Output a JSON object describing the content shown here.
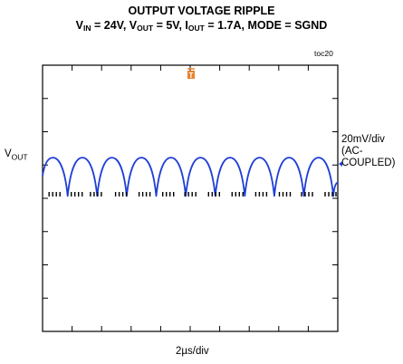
{
  "chart_data": {
    "type": "line",
    "title": "OUTPUT VOLTAGE RIPPLE",
    "subtitle": {
      "parts": [
        {
          "text": "V",
          "sub": false
        },
        {
          "text": "IN",
          "sub": true
        },
        {
          "text": " = 24V, V",
          "sub": false
        },
        {
          "text": "OUT",
          "sub": true
        },
        {
          "text": " = 5V, I",
          "sub": false
        },
        {
          "text": "OUT",
          "sub": true
        },
        {
          "text": " = 1.7A, MODE = SGND",
          "sub": false
        }
      ]
    },
    "figure_id": "toc20",
    "xlabel": "2µs/div",
    "trace_label": {
      "main": "V",
      "sub": "OUT"
    },
    "scale_label_lines": [
      "20mV/div",
      "(AC-",
      "COUPLED)"
    ],
    "trigger_marker": "T",
    "x_divisions": 10,
    "y_divisions": 8,
    "grid": false,
    "series": [
      {
        "values_x_div": [
          0.0,
          0.35,
          0.85,
          1.35,
          1.85,
          2.35,
          2.85,
          3.35,
          3.85,
          4.35,
          4.85,
          5.35,
          5.85,
          6.35,
          6.85,
          7.35,
          7.85,
          8.35,
          8.85,
          9.35,
          9.85,
          10.0
        ],
        "values_mV": [
          -4,
          7,
          -16,
          7,
          -16,
          7,
          -16,
          7,
          -16,
          7,
          -16,
          7,
          -16,
          7,
          -16,
          7,
          -16,
          7,
          -16,
          7,
          -16,
          -8
        ],
        "color": "#1f3fd6"
      }
    ],
    "pulse_marker_groups_x_div": [
      0.2,
      0.95,
      1.6,
      2.45,
      3.25,
      4.05,
      4.8,
      5.6,
      6.4,
      7.2,
      8.0,
      8.75,
      9.55
    ]
  }
}
